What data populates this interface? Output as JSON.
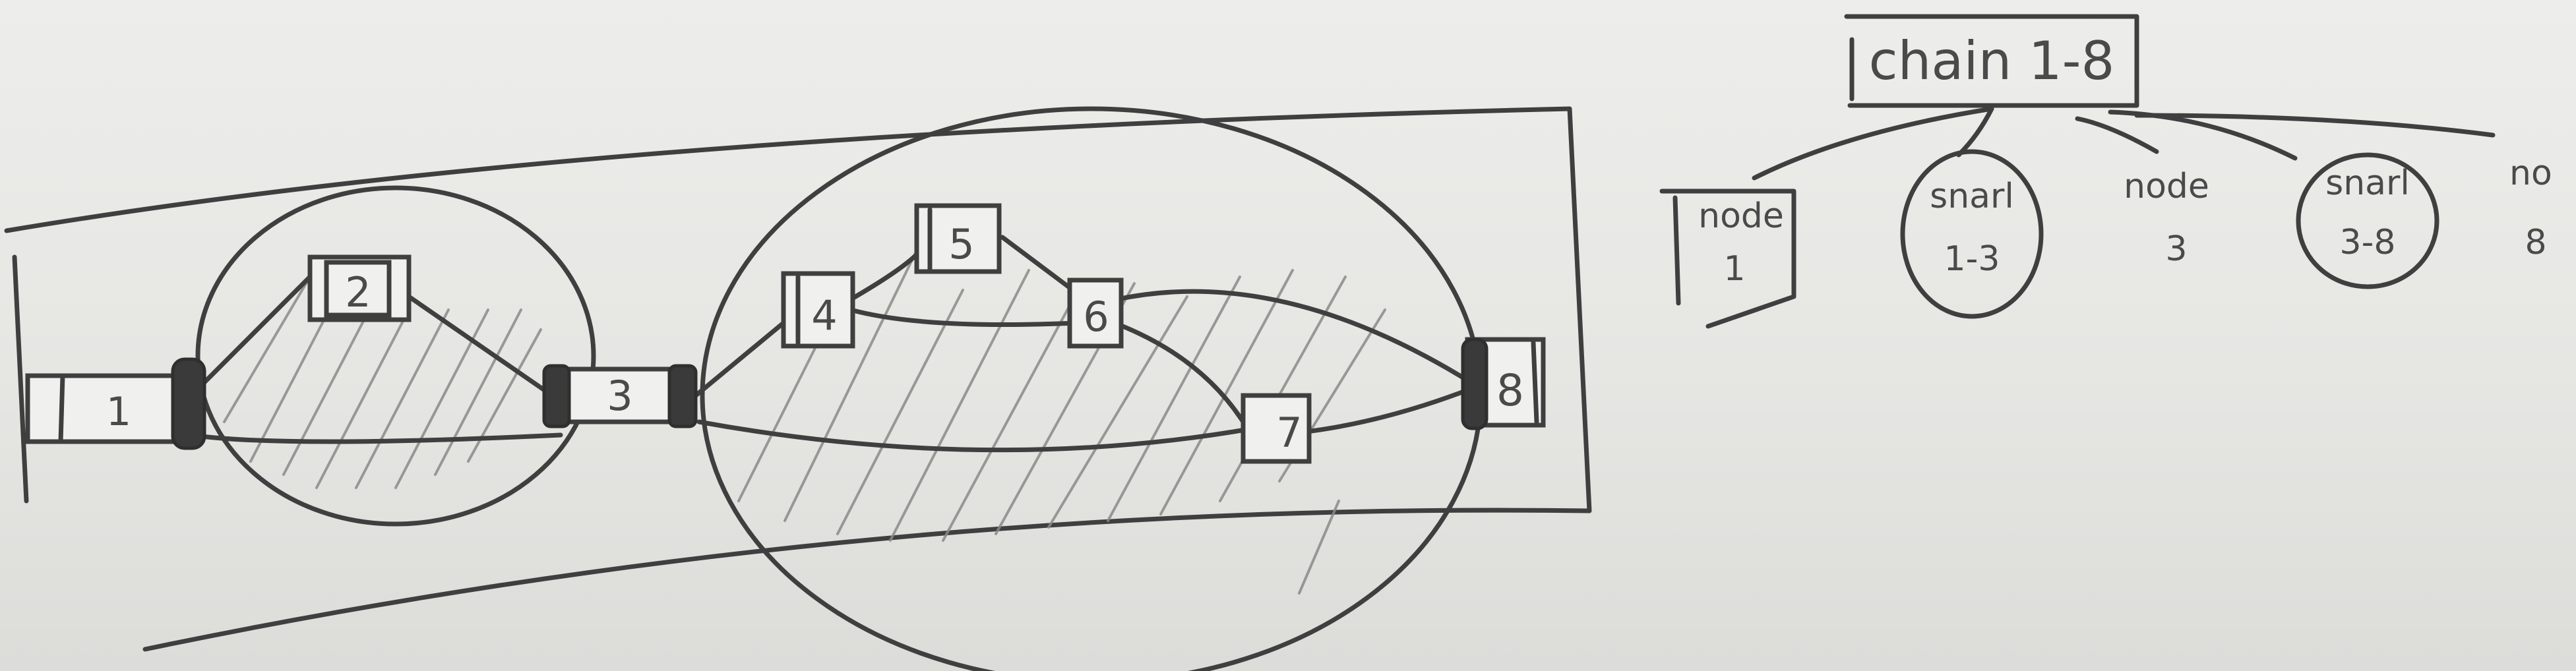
{
  "graph": {
    "nodes": [
      "1",
      "2",
      "3",
      "4",
      "5",
      "6",
      "7",
      "8"
    ]
  },
  "tree": {
    "root": "chain 1-8",
    "children": [
      {
        "line1": "node",
        "line2": "1"
      },
      {
        "line1": "snarl",
        "line2": "1-3"
      },
      {
        "line1": "node",
        "line2": "3"
      },
      {
        "line1": "snarl",
        "line2": "3-8"
      },
      {
        "line1": "no",
        "line2": "8"
      }
    ]
  }
}
